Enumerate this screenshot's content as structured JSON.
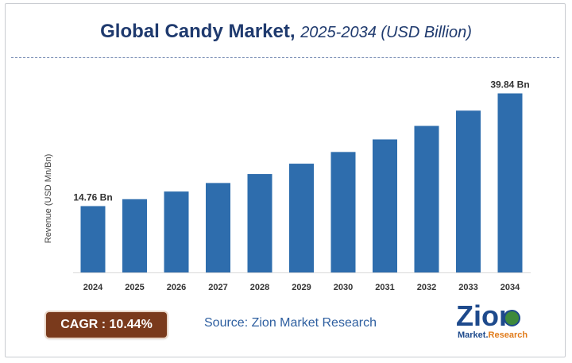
{
  "header": {
    "title_main": "Global Candy Market,",
    "title_sub": "2025-2034 (USD Billion)"
  },
  "chart_data": {
    "type": "bar",
    "categories": [
      "2024",
      "2025",
      "2026",
      "2027",
      "2028",
      "2029",
      "2030",
      "2031",
      "2032",
      "2033",
      "2034"
    ],
    "values": [
      14.76,
      16.3,
      18.0,
      19.9,
      21.9,
      24.2,
      26.8,
      29.6,
      32.6,
      36.0,
      39.84
    ],
    "data_labels": [
      {
        "index": 0,
        "text": "14.76 Bn"
      },
      {
        "index": 10,
        "text": "39.84 Bn"
      }
    ],
    "ylabel": "Revenue (USD Mn/Bn)",
    "xlabel": "",
    "ylim": [
      0,
      44
    ],
    "grid": false,
    "bar_color": "#2e6dad"
  },
  "footer": {
    "cagr_label": "CAGR : 10.44%",
    "cagr_color": "#7a3a1c",
    "source": "Source: Zion Market Research",
    "logo_word": "Zion",
    "logo_tag_a": "Market.",
    "logo_tag_b": "Research"
  }
}
